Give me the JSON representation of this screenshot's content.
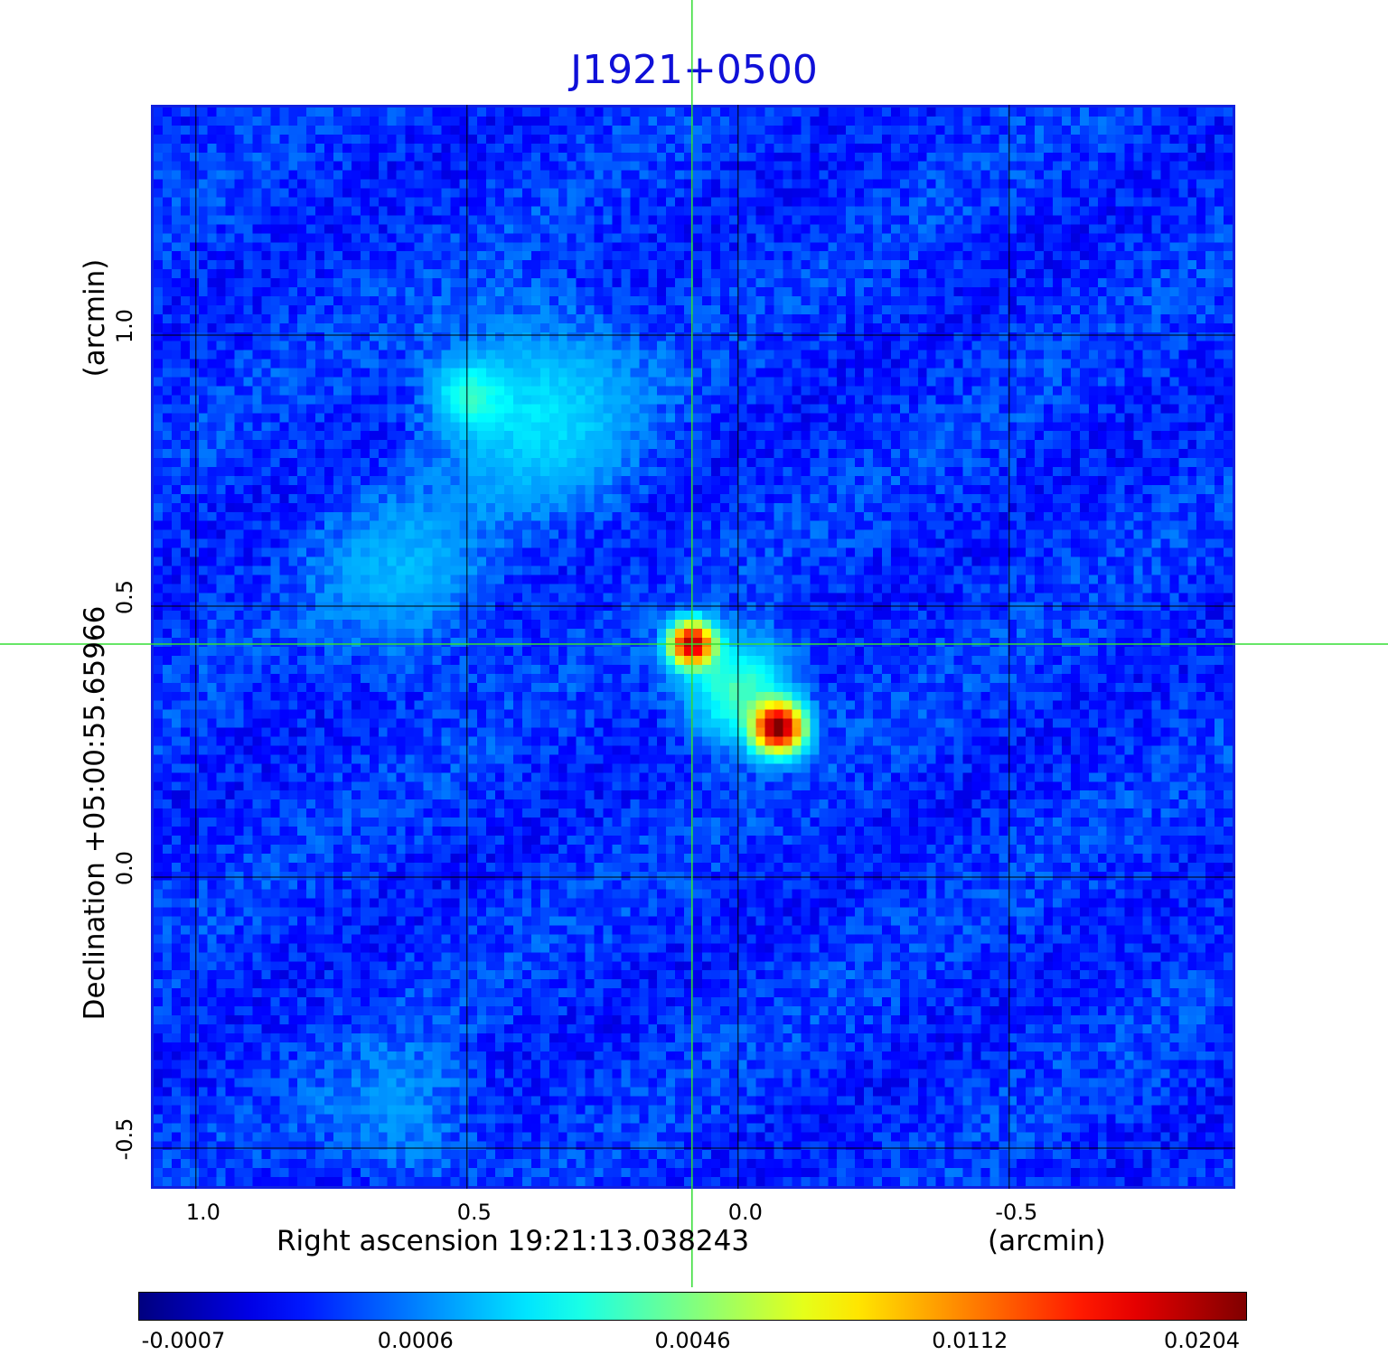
{
  "title": "J1921+0500",
  "chart_data": {
    "type": "heatmap",
    "title": "J1921+0500",
    "xlabel": "Right ascension  19:21:13.038243",
    "xunit": "(arcmin)",
    "ylabel": "Declination  +05:00:55.65966",
    "yunit": "(arcmin)",
    "x_ticks": [
      "1.0",
      "0.5",
      "0.0",
      "-0.5"
    ],
    "x_tick_values": [
      1.0,
      0.5,
      0.0,
      -0.5
    ],
    "y_ticks": [
      "1.0",
      "0.5",
      "0.0",
      "-0.5"
    ],
    "y_tick_values": [
      1.0,
      0.5,
      0.0,
      -0.5
    ],
    "xlim": [
      1.083,
      -0.917
    ],
    "ylim": [
      -0.575,
      1.425
    ],
    "grid": true,
    "crosshair": {
      "x": 0.085,
      "y": 0.43,
      "color": "#33dd33"
    },
    "colormap": "jet",
    "colorbar_ticks": [
      "-0.0007",
      "0.0006",
      "0.0046",
      "0.0112",
      "0.0204"
    ],
    "colorbar_values": [
      -0.0007,
      0.0006,
      0.0046,
      0.0112,
      0.0204
    ],
    "vmin": -0.0007,
    "vmax": 0.0204,
    "sources": [
      {
        "x": 0.085,
        "y": 0.43,
        "peak": 0.0185,
        "sigma_arcmin": 0.025
      },
      {
        "x": -0.075,
        "y": 0.275,
        "peak": 0.0204,
        "sigma_arcmin": 0.028
      },
      {
        "x": 0.0,
        "y": 0.345,
        "peak": 0.0035,
        "sigma_arcmin": 0.06
      },
      {
        "x": 0.5,
        "y": 0.89,
        "peak": 0.0025,
        "sigma_arcmin": 0.04
      },
      {
        "x": 0.37,
        "y": 0.86,
        "peak": 0.0018,
        "sigma_arcmin": 0.11
      },
      {
        "x": 0.62,
        "y": 0.56,
        "peak": 0.001,
        "sigma_arcmin": 0.1
      },
      {
        "x": 0.62,
        "y": -0.44,
        "peak": 0.0007,
        "sigma_arcmin": 0.08
      }
    ]
  }
}
